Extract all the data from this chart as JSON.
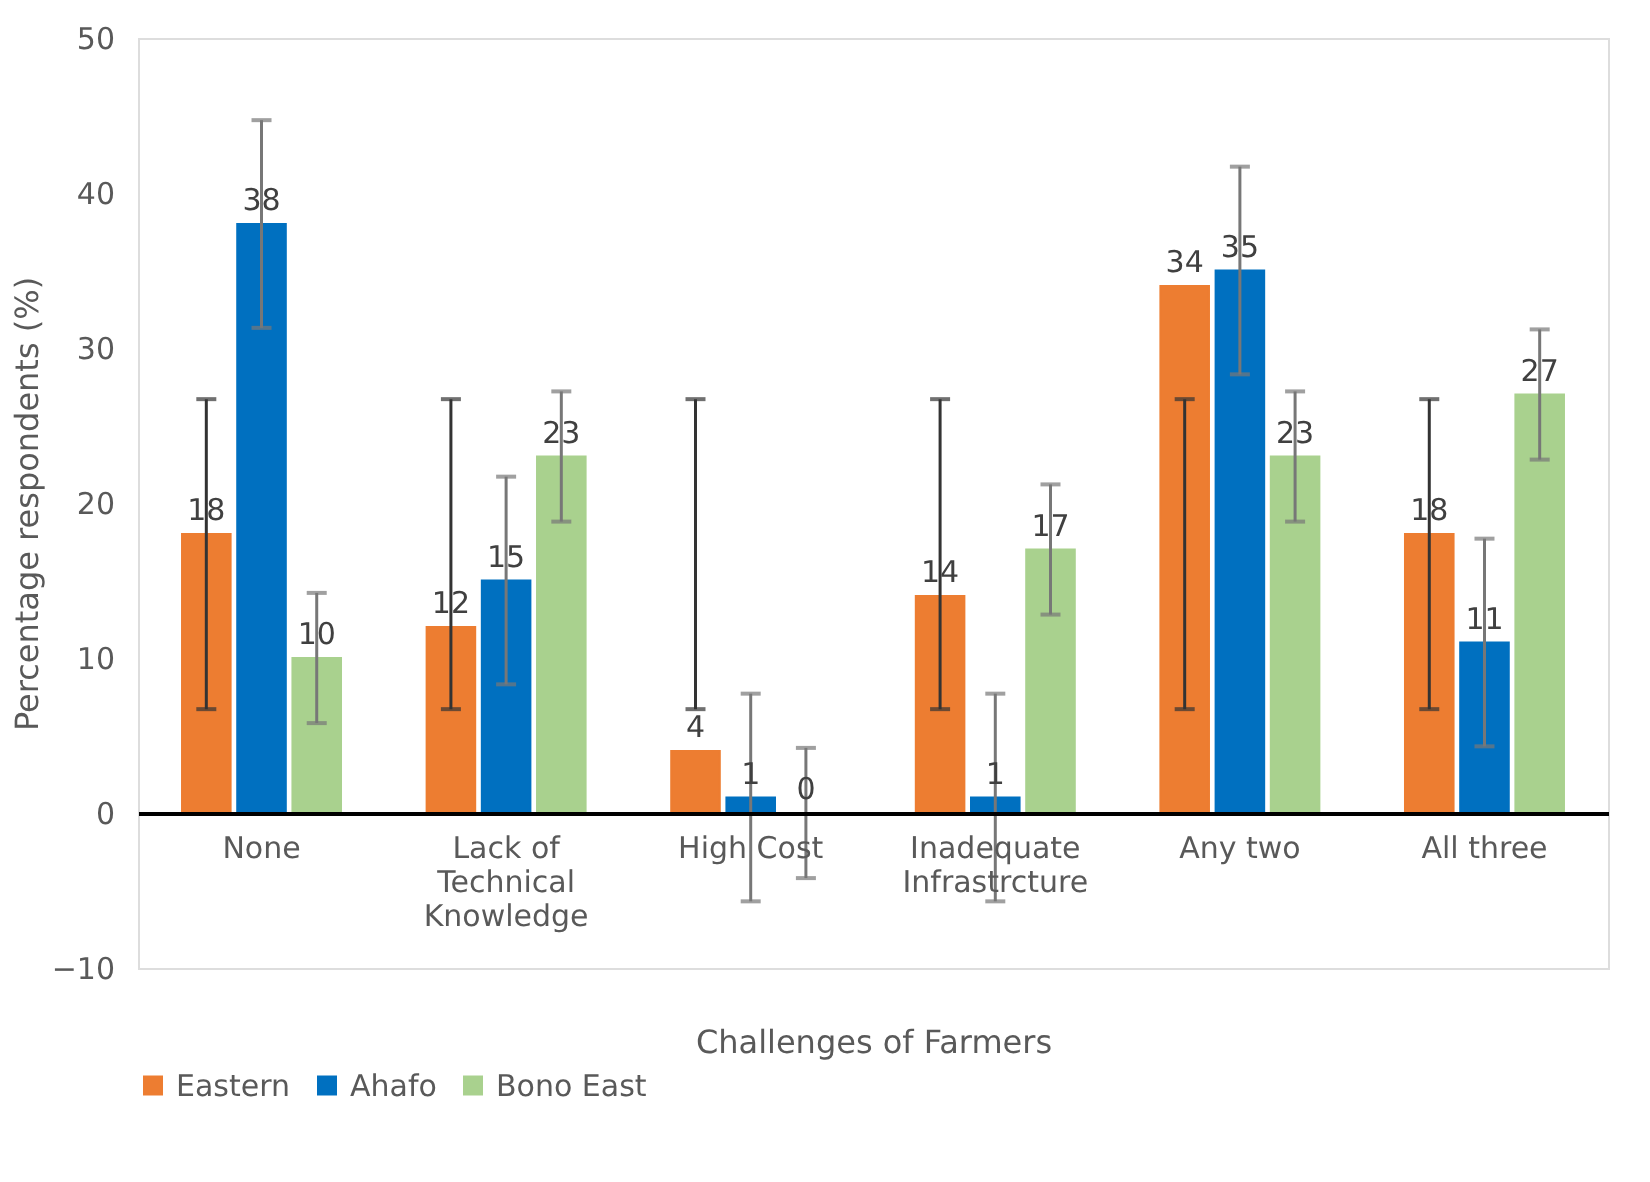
{
  "chart_data": {
    "type": "bar",
    "xlabel": "Challenges of Farmers",
    "ylabel": "Percentage respondents (%)",
    "categories": [
      "None",
      "Lack of Technical Knowledge",
      "High Cost",
      "Inadequate Infrastrcture",
      "Any two",
      "All three"
    ],
    "series": [
      {
        "name": "Eastern",
        "color": "#ed7d31",
        "values": [
          18,
          12,
          4,
          14,
          34,
          18
        ],
        "errors": [
          [
            6.7,
            26.7
          ],
          [
            6.7,
            26.7
          ],
          [
            6.7,
            26.7
          ],
          [
            6.7,
            26.7
          ],
          [
            6.7,
            26.7
          ],
          [
            6.7,
            26.7
          ]
        ]
      },
      {
        "name": "Ahafo",
        "color": "#0070c0",
        "values": [
          38,
          15,
          1,
          1,
          35,
          11
        ],
        "errors": [
          6.7,
          6.7,
          6.7,
          6.7,
          6.7,
          6.7
        ]
      },
      {
        "name": "Bono East",
        "color": "#a9d18e",
        "values": [
          10,
          23,
          0,
          17,
          23,
          27
        ],
        "errors": [
          4.2,
          4.2,
          4.2,
          4.2,
          4.2,
          4.2
        ]
      }
    ],
    "ylim": [
      -10,
      50
    ],
    "yticks": [
      -10,
      0,
      10,
      20,
      30,
      40,
      50
    ],
    "grid": false,
    "legend": "bottom",
    "data_labels": true
  }
}
